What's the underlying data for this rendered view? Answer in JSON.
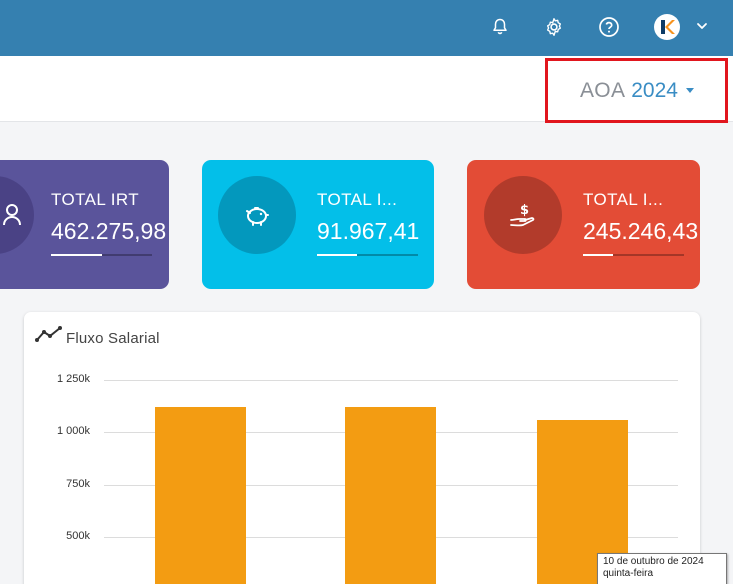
{
  "header": {
    "icons": [
      "bell-icon",
      "gear-icon",
      "help-icon",
      "avatar-logo",
      "chevron-down-icon"
    ],
    "avatar_letter": "K"
  },
  "year_selector": {
    "currency": "AOA",
    "year": "2024"
  },
  "cards": [
    {
      "title": "TOTAL IRT",
      "value": "462.275,98",
      "progress": 0.5,
      "color": "#5a549b",
      "icon": "person-icon"
    },
    {
      "title": "TOTAL I...",
      "value": "91.967,41",
      "progress": 0.4,
      "color": "#03bfe9",
      "icon": "piggy-bank-icon"
    },
    {
      "title": "TOTAL I...",
      "value": "245.246,43",
      "progress": 0.3,
      "color": "#e34c36",
      "icon": "hand-dollar-icon"
    }
  ],
  "chart": {
    "title": "Fluxo Salarial",
    "icon": "trend-line-icon"
  },
  "chart_data": {
    "type": "bar",
    "title": "Fluxo Salarial",
    "y_ticks": [
      "1 250k",
      "1 000k",
      "750k",
      "500k"
    ],
    "ylim": [
      0,
      1250000
    ],
    "categories": [
      "",
      "",
      ""
    ],
    "series": [
      {
        "values": [
          1120000,
          1120000,
          1060000
        ],
        "color": "#f39c12"
      }
    ],
    "grid": true
  },
  "tooltip": {
    "line1": "10 de outubro de 2024",
    "line2": "quinta-feira"
  }
}
